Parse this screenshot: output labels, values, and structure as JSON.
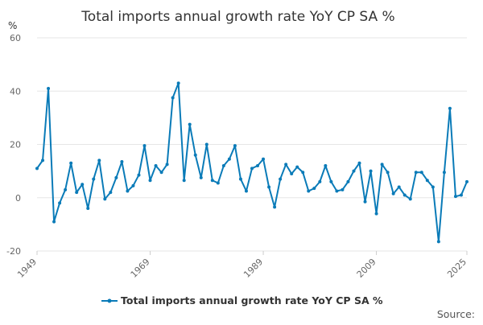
{
  "colors": {
    "line": "#0a7bb8",
    "grid": "#e6e6e6",
    "text": "#333333",
    "axis_text": "#666666"
  },
  "chart_data": {
    "type": "line",
    "title": "Total imports annual growth rate YoY CP SA %",
    "ylabel": "%",
    "xlabel": "",
    "ylim": [
      -20,
      60
    ],
    "y_ticks": [
      -20,
      0,
      20,
      40,
      60
    ],
    "x_ticks": [
      1949,
      1969,
      1989,
      2009,
      2025
    ],
    "grid": true,
    "legend": "bottom-center",
    "source_label": "Source:",
    "series": [
      {
        "name": "Total imports annual growth rate YoY CP SA %",
        "x": [
          1949,
          1950,
          1951,
          1952,
          1953,
          1954,
          1955,
          1956,
          1957,
          1958,
          1959,
          1960,
          1961,
          1962,
          1963,
          1964,
          1965,
          1966,
          1967,
          1968,
          1969,
          1970,
          1971,
          1972,
          1973,
          1974,
          1975,
          1976,
          1977,
          1978,
          1979,
          1980,
          1981,
          1982,
          1983,
          1984,
          1985,
          1986,
          1987,
          1988,
          1989,
          1990,
          1991,
          1992,
          1993,
          1994,
          1995,
          1996,
          1997,
          1998,
          1999,
          2000,
          2001,
          2002,
          2003,
          2004,
          2005,
          2006,
          2007,
          2008,
          2009,
          2010,
          2011,
          2012,
          2013,
          2014,
          2015,
          2016,
          2017,
          2018,
          2019,
          2020,
          2021,
          2022,
          2023,
          2024,
          2025
        ],
        "values": [
          11,
          14,
          41,
          -9,
          -2,
          3,
          13,
          2,
          5,
          -4,
          7,
          14,
          -0.5,
          2,
          7.5,
          13.5,
          2.5,
          4.5,
          8.5,
          19.5,
          6.5,
          12,
          9.5,
          12.5,
          37.5,
          43,
          6.5,
          27.5,
          16,
          7.5,
          20,
          6.5,
          5.5,
          12,
          14.5,
          19.5,
          7,
          2.5,
          11,
          12,
          14.5,
          4,
          -3.5,
          7,
          12.5,
          9,
          11.5,
          9.5,
          2.5,
          3.5,
          6,
          12,
          6,
          2.5,
          3,
          6,
          10,
          13,
          -1.5,
          10,
          -6,
          12.5,
          9.5,
          1.5,
          4,
          1,
          -0.5,
          9.5,
          9.5,
          6.5,
          4,
          -16.5,
          9.5,
          33.5,
          0.5,
          1,
          6
        ]
      }
    ]
  }
}
